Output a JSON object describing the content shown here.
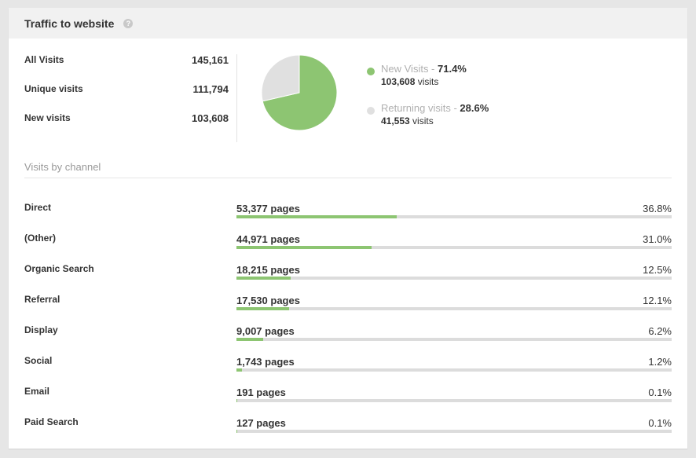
{
  "header": {
    "title": "Traffic to website",
    "help_glyph": "?"
  },
  "summary": [
    {
      "label": "All Visits",
      "value": "145,161"
    },
    {
      "label": "Unique visits",
      "value": "111,794"
    },
    {
      "label": "New visits",
      "value": "103,608"
    }
  ],
  "pie": {
    "slices": [
      {
        "label": "New Visits",
        "percent": 71.4,
        "color": "#8dc572"
      },
      {
        "label": "Returning visits",
        "percent": 28.6,
        "color": "#e0e0e0"
      }
    ]
  },
  "legend": [
    {
      "label": "New Visits - ",
      "percent": "71.4%",
      "count": "103,608",
      "unit": " visits",
      "color": "#8dc572"
    },
    {
      "label": "Returning visits - ",
      "percent": "28.6%",
      "count": "41,553",
      "unit": " visits",
      "color": "#e0e0e0"
    }
  ],
  "channels": {
    "title": "Visits by channel",
    "items": [
      {
        "name": "Direct",
        "pages": "53,377 pages",
        "percent": "36.8%",
        "fill": 0.368
      },
      {
        "name": "(Other)",
        "pages": "44,971 pages",
        "percent": "31.0%",
        "fill": 0.31
      },
      {
        "name": "Organic Search",
        "pages": "18,215 pages",
        "percent": "12.5%",
        "fill": 0.125
      },
      {
        "name": "Referral",
        "pages": "17,530 pages",
        "percent": "12.1%",
        "fill": 0.121
      },
      {
        "name": "Display",
        "pages": "9,007 pages",
        "percent": "6.2%",
        "fill": 0.062
      },
      {
        "name": "Social",
        "pages": "1,743 pages",
        "percent": "1.2%",
        "fill": 0.012
      },
      {
        "name": "Email",
        "pages": "191 pages",
        "percent": "0.1%",
        "fill": 0.001
      },
      {
        "name": "Paid Search",
        "pages": "127 pages",
        "percent": "0.1%",
        "fill": 0.001
      }
    ]
  },
  "colors": {
    "accent": "#8dc572",
    "track": "#dcdcdc",
    "header_bg": "#f1f1f1",
    "page_bg": "#e6e6e6"
  }
}
